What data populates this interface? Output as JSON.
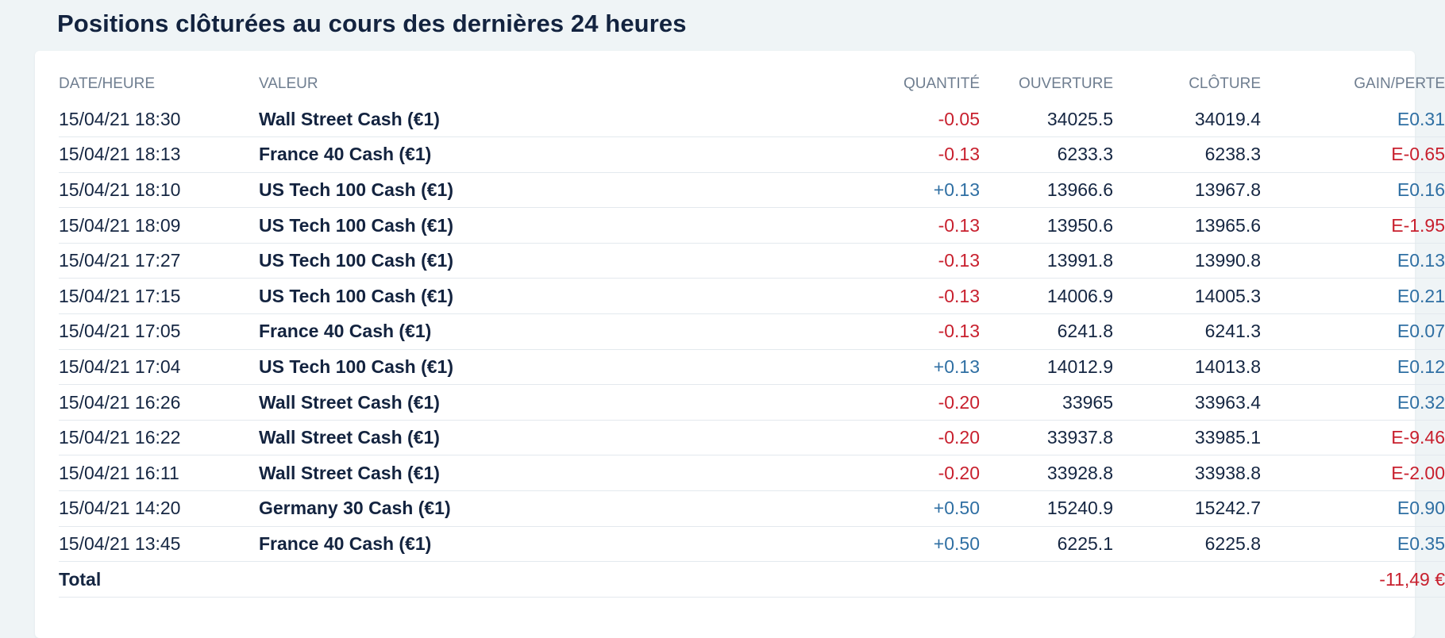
{
  "section": {
    "title": "Positions clôturées au cours des dernières 24 heures"
  },
  "table": {
    "headers": {
      "date": "DATE/HEURE",
      "instrument": "VALEUR",
      "quantity": "QUANTITÉ",
      "open": "OUVERTURE",
      "close": "CLÔTURE",
      "pl": "GAIN/PERTE"
    },
    "rows": [
      {
        "date": "15/04/21 18:30",
        "instrument": "Wall Street Cash (€1)",
        "quantity": "-0.05",
        "open": "34025.5",
        "close": "34019.4",
        "pl": "E0.31"
      },
      {
        "date": "15/04/21 18:13",
        "instrument": "France 40 Cash (€1)",
        "quantity": "-0.13",
        "open": "6233.3",
        "close": "6238.3",
        "pl": "E-0.65"
      },
      {
        "date": "15/04/21 18:10",
        "instrument": "US Tech 100 Cash (€1)",
        "quantity": "+0.13",
        "open": "13966.6",
        "close": "13967.8",
        "pl": "E0.16"
      },
      {
        "date": "15/04/21 18:09",
        "instrument": "US Tech 100 Cash (€1)",
        "quantity": "-0.13",
        "open": "13950.6",
        "close": "13965.6",
        "pl": "E-1.95"
      },
      {
        "date": "15/04/21 17:27",
        "instrument": "US Tech 100 Cash (€1)",
        "quantity": "-0.13",
        "open": "13991.8",
        "close": "13990.8",
        "pl": "E0.13"
      },
      {
        "date": "15/04/21 17:15",
        "instrument": "US Tech 100 Cash (€1)",
        "quantity": "-0.13",
        "open": "14006.9",
        "close": "14005.3",
        "pl": "E0.21"
      },
      {
        "date": "15/04/21 17:05",
        "instrument": "France 40 Cash (€1)",
        "quantity": "-0.13",
        "open": "6241.8",
        "close": "6241.3",
        "pl": "E0.07"
      },
      {
        "date": "15/04/21 17:04",
        "instrument": "US Tech 100 Cash (€1)",
        "quantity": "+0.13",
        "open": "14012.9",
        "close": "14013.8",
        "pl": "E0.12"
      },
      {
        "date": "15/04/21 16:26",
        "instrument": "Wall Street Cash (€1)",
        "quantity": "-0.20",
        "open": "33965",
        "close": "33963.4",
        "pl": "E0.32"
      },
      {
        "date": "15/04/21 16:22",
        "instrument": "Wall Street Cash (€1)",
        "quantity": "-0.20",
        "open": "33937.8",
        "close": "33985.1",
        "pl": "E-9.46"
      },
      {
        "date": "15/04/21 16:11",
        "instrument": "Wall Street Cash (€1)",
        "quantity": "-0.20",
        "open": "33928.8",
        "close": "33938.8",
        "pl": "E-2.00"
      },
      {
        "date": "15/04/21 14:20",
        "instrument": "Germany 30 Cash (€1)",
        "quantity": "+0.50",
        "open": "15240.9",
        "close": "15242.7",
        "pl": "E0.90"
      },
      {
        "date": "15/04/21 13:45",
        "instrument": "France 40 Cash (€1)",
        "quantity": "+0.50",
        "open": "6225.1",
        "close": "6225.8",
        "pl": "E0.35"
      }
    ],
    "total": {
      "label": "Total",
      "value": "-11,49 €"
    }
  },
  "colors": {
    "negative": "#c8202e",
    "positive": "#2f6fa3",
    "text": "#152642",
    "header": "#6f7e90",
    "background": "#eff4f6"
  }
}
